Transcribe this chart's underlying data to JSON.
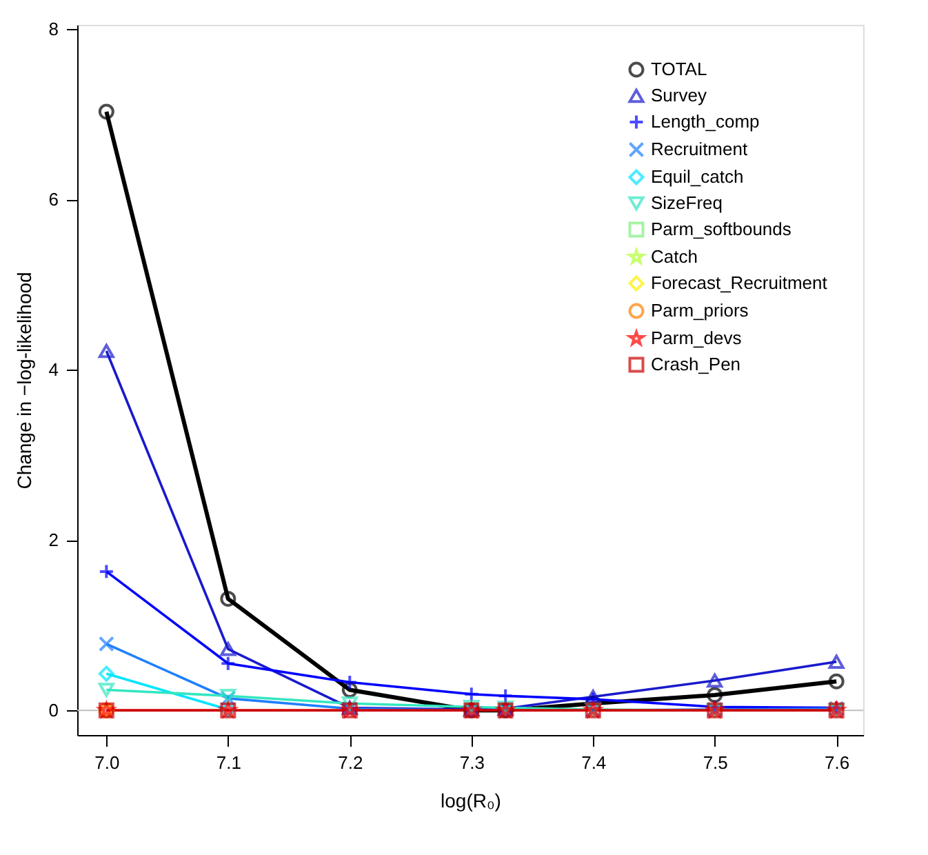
{
  "chart_data": {
    "type": "line",
    "xlabel": "log(R₀)",
    "ylabel": "Change in −log-likelihood",
    "x": [
      7.0,
      7.1,
      7.2,
      7.3,
      7.328,
      7.4,
      7.5,
      7.6
    ],
    "xlim": [
      6.976,
      7.622
    ],
    "xticks": [
      {
        "value": 7.0,
        "label": "7.0"
      },
      7.1,
      7.2,
      7.3,
      7.4,
      7.5,
      7.6
    ],
    "ylim": [
      -0.29,
      8.05
    ],
    "yticks": [
      0,
      2,
      4,
      6,
      8
    ],
    "grid": false,
    "legend": "top right",
    "line_style": "solid",
    "ref_lines": [
      {
        "axis": "y",
        "value": 0,
        "color": "#bebebe"
      }
    ],
    "series": [
      {
        "name": "TOTAL",
        "color": "#000000",
        "marker": "circle",
        "values": [
          7.03,
          1.31,
          0.24,
          0,
          0,
          0.08,
          0.18,
          0.34
        ]
      },
      {
        "name": "Survey",
        "color": "#1a1acc",
        "marker": "triangle",
        "values": [
          4.22,
          0.72,
          0.03,
          0.01,
          0.02,
          0.16,
          0.35,
          0.57
        ]
      },
      {
        "name": "Length_comp",
        "color": "#0000ff",
        "marker": "cross",
        "values": [
          1.63,
          0.55,
          0.33,
          0.19,
          0.17,
          0.13,
          0.04,
          0.03
        ]
      },
      {
        "name": "Recruitment",
        "color": "#1e7fff",
        "marker": "x",
        "values": [
          0.78,
          0.14,
          0.02,
          0,
          0,
          0,
          0.01,
          0.02
        ]
      },
      {
        "name": "Equil_catch",
        "color": "#00e5ff",
        "marker": "diamond",
        "values": [
          0.43,
          0.01,
          null,
          null,
          null,
          null,
          null,
          null
        ]
      },
      {
        "name": "SizeFreq",
        "color": "#33e6c0",
        "marker": "triangle-down",
        "values": [
          0.24,
          0.17,
          0.08,
          0.04,
          0.03,
          0.01,
          0,
          0
        ]
      },
      {
        "name": "Parm_softbounds",
        "color": "#80f080",
        "marker": "square",
        "values": [
          null,
          null,
          null,
          null,
          null,
          null,
          null,
          null
        ]
      },
      {
        "name": "Catch",
        "color": "#b3ff33",
        "marker": "star",
        "values": [
          null,
          null,
          null,
          null,
          null,
          null,
          null,
          null
        ]
      },
      {
        "name": "Forecast_Recruitment",
        "color": "#ffee00",
        "marker": "diamond",
        "values": [
          0,
          null,
          null,
          null,
          null,
          null,
          null,
          null
        ]
      },
      {
        "name": "Parm_priors",
        "color": "#ff8000",
        "marker": "circle",
        "values": [
          0,
          null,
          null,
          null,
          null,
          null,
          null,
          null
        ]
      },
      {
        "name": "Parm_devs",
        "color": "#ff0000",
        "marker": "star",
        "values": [
          0,
          0,
          0,
          0,
          0,
          0,
          0,
          0
        ]
      },
      {
        "name": "Crash_Pen",
        "color": "#cc0000",
        "marker": "square",
        "values": [
          0,
          0,
          0,
          0,
          0,
          0,
          0,
          0
        ]
      }
    ]
  }
}
